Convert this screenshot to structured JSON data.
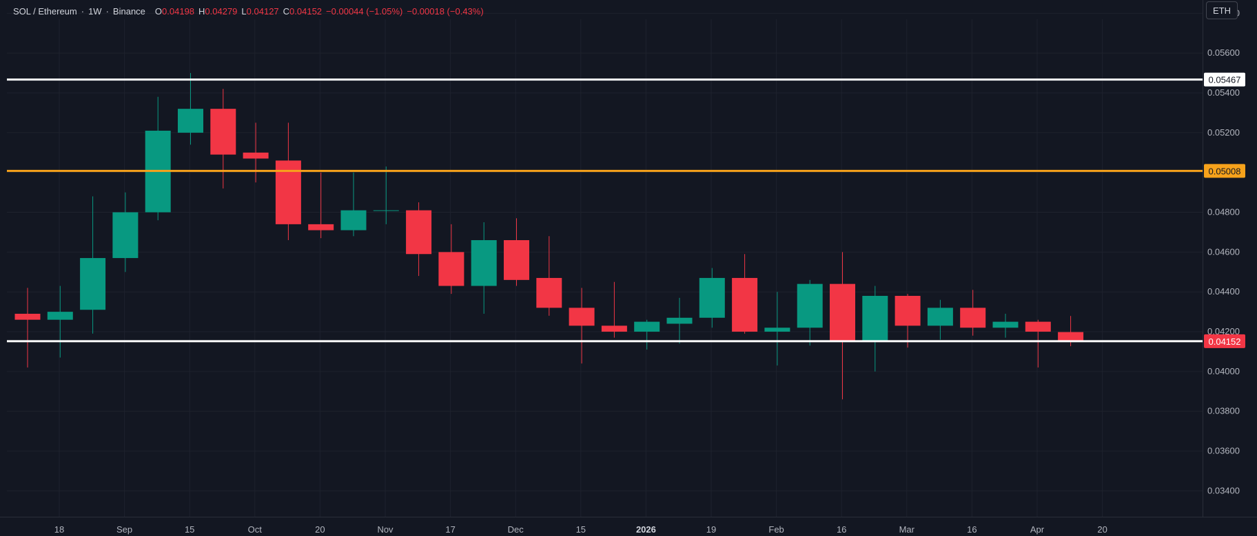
{
  "header": {
    "symbol": "SOL / Ethereum",
    "interval": "1W",
    "exchange": "Binance",
    "open_label": "O",
    "open": "0.04198",
    "high_label": "H",
    "high": "0.04279",
    "low_label": "L",
    "low": "0.04127",
    "close_label": "C",
    "close": "0.04152",
    "change": "−0.00044 (−1.05%)",
    "change2": "−0.00018 (−0.43%)"
  },
  "currency_button": "ETH",
  "colors": {
    "background": "#131722",
    "grid": "#1e222d",
    "up": "#089981",
    "down": "#f23645",
    "support_line": "#ffffff",
    "mid_line": "#f7a21b"
  },
  "chart_data": {
    "type": "candlestick",
    "y_scale": "linear",
    "ylim": [
      0.0327,
      0.0577
    ],
    "y_ticks": [
      "0.03400",
      "0.03600",
      "0.03800",
      "0.04000",
      "0.04200",
      "0.04400",
      "0.04600",
      "0.04800",
      "0.05000",
      "0.05200",
      "0.05400",
      "0.05600",
      "0.05800"
    ],
    "x_ticks": [
      {
        "label": "18",
        "bold": false
      },
      {
        "label": "Sep",
        "bold": false
      },
      {
        "label": "15",
        "bold": false
      },
      {
        "label": "Oct",
        "bold": false
      },
      {
        "label": "20",
        "bold": false
      },
      {
        "label": "Nov",
        "bold": false
      },
      {
        "label": "17",
        "bold": false
      },
      {
        "label": "Dec",
        "bold": false
      },
      {
        "label": "15",
        "bold": false
      },
      {
        "label": "2026",
        "bold": true
      },
      {
        "label": "19",
        "bold": false
      },
      {
        "label": "Feb",
        "bold": false
      },
      {
        "label": "16",
        "bold": false
      },
      {
        "label": "Mar",
        "bold": false
      },
      {
        "label": "16",
        "bold": false
      },
      {
        "label": "Apr",
        "bold": false
      },
      {
        "label": "20",
        "bold": false
      }
    ],
    "candles": [
      {
        "o": 0.0429,
        "h": 0.0442,
        "l": 0.0402,
        "c": 0.0426
      },
      {
        "o": 0.0426,
        "h": 0.0443,
        "l": 0.0407,
        "c": 0.043
      },
      {
        "o": 0.0431,
        "h": 0.0488,
        "l": 0.0419,
        "c": 0.0457
      },
      {
        "o": 0.0457,
        "h": 0.049,
        "l": 0.045,
        "c": 0.048
      },
      {
        "o": 0.048,
        "h": 0.0538,
        "l": 0.0476,
        "c": 0.0521
      },
      {
        "o": 0.052,
        "h": 0.055,
        "l": 0.0514,
        "c": 0.0532
      },
      {
        "o": 0.0532,
        "h": 0.0542,
        "l": 0.0492,
        "c": 0.0509
      },
      {
        "o": 0.051,
        "h": 0.0525,
        "l": 0.0495,
        "c": 0.0507
      },
      {
        "o": 0.0506,
        "h": 0.0525,
        "l": 0.0466,
        "c": 0.0474
      },
      {
        "o": 0.0474,
        "h": 0.05,
        "l": 0.0467,
        "c": 0.0471
      },
      {
        "o": 0.0471,
        "h": 0.05,
        "l": 0.0468,
        "c": 0.0481
      },
      {
        "o": 0.0481,
        "h": 0.0503,
        "l": 0.0474,
        "c": 0.0481
      },
      {
        "o": 0.0481,
        "h": 0.0485,
        "l": 0.0448,
        "c": 0.0459
      },
      {
        "o": 0.046,
        "h": 0.0474,
        "l": 0.0439,
        "c": 0.0443
      },
      {
        "o": 0.0443,
        "h": 0.0475,
        "l": 0.0429,
        "c": 0.0466
      },
      {
        "o": 0.0466,
        "h": 0.0477,
        "l": 0.0443,
        "c": 0.0446
      },
      {
        "o": 0.0447,
        "h": 0.0468,
        "l": 0.0428,
        "c": 0.0432
      },
      {
        "o": 0.0432,
        "h": 0.0442,
        "l": 0.0404,
        "c": 0.0423
      },
      {
        "o": 0.0423,
        "h": 0.0445,
        "l": 0.0417,
        "c": 0.042
      },
      {
        "o": 0.042,
        "h": 0.0426,
        "l": 0.0411,
        "c": 0.0425
      },
      {
        "o": 0.0424,
        "h": 0.0437,
        "l": 0.0414,
        "c": 0.0427
      },
      {
        "o": 0.0427,
        "h": 0.0452,
        "l": 0.0422,
        "c": 0.0447
      },
      {
        "o": 0.0447,
        "h": 0.0459,
        "l": 0.0419,
        "c": 0.042
      },
      {
        "o": 0.042,
        "h": 0.044,
        "l": 0.0403,
        "c": 0.0422
      },
      {
        "o": 0.0422,
        "h": 0.0446,
        "l": 0.0413,
        "c": 0.0444
      },
      {
        "o": 0.0444,
        "h": 0.046,
        "l": 0.0386,
        "c": 0.0415
      },
      {
        "o": 0.0415,
        "h": 0.0443,
        "l": 0.04,
        "c": 0.0438
      },
      {
        "o": 0.0438,
        "h": 0.0439,
        "l": 0.0412,
        "c": 0.0423
      },
      {
        "o": 0.0423,
        "h": 0.0436,
        "l": 0.0416,
        "c": 0.0432
      },
      {
        "o": 0.0432,
        "h": 0.0441,
        "l": 0.0418,
        "c": 0.0422
      },
      {
        "o": 0.0422,
        "h": 0.0429,
        "l": 0.0417,
        "c": 0.0425
      },
      {
        "o": 0.0425,
        "h": 0.0426,
        "l": 0.0402,
        "c": 0.042
      },
      {
        "o": 0.04198,
        "h": 0.04279,
        "l": 0.04127,
        "c": 0.04152
      }
    ],
    "horizontal_levels": [
      {
        "value": 0.05467,
        "label": "0.05467",
        "color": "#ffffff",
        "label_bg": "#ffffff",
        "label_color": "#131722"
      },
      {
        "value": 0.05008,
        "label": "0.05008",
        "color": "#f7a21b",
        "label_bg": "#f7a21b",
        "label_color": "#131722"
      },
      {
        "value": 0.04152,
        "label": "0.04152",
        "color": "#ffffff",
        "label_bg": "#f23645",
        "label_color": "#ffffff"
      }
    ],
    "grid": true
  }
}
